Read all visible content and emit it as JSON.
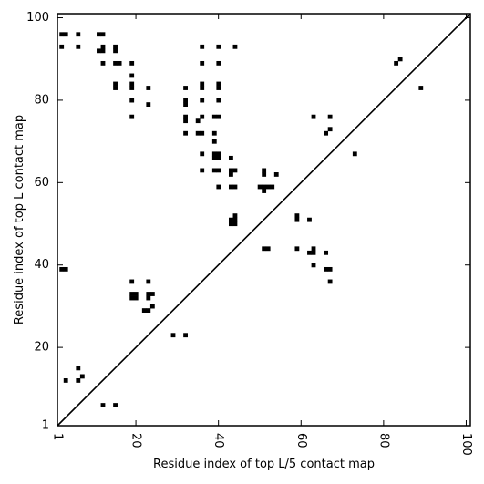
{
  "chart_data": {
    "type": "scatter",
    "title": "",
    "xlabel": "Residue index of top L/5 contact map",
    "ylabel": "Residue index of top L contact map",
    "xlim": [
      1,
      101
    ],
    "ylim": [
      1,
      101
    ],
    "x_ticks": [
      1,
      20,
      40,
      60,
      80,
      100
    ],
    "y_ticks": [
      1,
      20,
      40,
      60,
      80,
      100
    ],
    "diagonal": true,
    "grid": false,
    "points": [
      [
        2,
        96
      ],
      [
        3,
        96
      ],
      [
        6,
        96
      ],
      [
        11,
        96
      ],
      [
        12,
        96
      ],
      [
        2,
        93
      ],
      [
        6,
        93
      ],
      [
        11,
        92
      ],
      [
        12,
        92
      ],
      [
        12,
        93
      ],
      [
        15,
        92
      ],
      [
        15,
        93
      ],
      [
        12,
        89
      ],
      [
        15,
        89
      ],
      [
        16,
        89
      ],
      [
        19,
        89
      ],
      [
        19,
        86
      ],
      [
        15,
        84
      ],
      [
        15,
        83
      ],
      [
        19,
        84
      ],
      [
        19,
        83
      ],
      [
        23,
        83
      ],
      [
        19,
        80
      ],
      [
        23,
        79
      ],
      [
        19,
        76
      ],
      [
        36,
        93
      ],
      [
        40,
        93
      ],
      [
        44,
        93
      ],
      [
        36,
        89
      ],
      [
        40,
        89
      ],
      [
        32,
        83
      ],
      [
        36,
        84
      ],
      [
        36,
        83
      ],
      [
        40,
        84
      ],
      [
        40,
        83
      ],
      [
        32,
        80
      ],
      [
        32,
        79
      ],
      [
        36,
        80
      ],
      [
        40,
        80
      ],
      [
        32,
        76
      ],
      [
        32,
        75
      ],
      [
        35,
        75
      ],
      [
        36,
        76
      ],
      [
        39,
        76
      ],
      [
        40,
        76
      ],
      [
        32,
        72
      ],
      [
        35,
        72
      ],
      [
        36,
        72
      ],
      [
        39,
        72
      ],
      [
        39,
        70
      ],
      [
        36,
        67
      ],
      [
        39,
        67
      ],
      [
        40,
        67
      ],
      [
        39,
        66
      ],
      [
        40,
        66
      ],
      [
        43,
        66
      ],
      [
        36,
        63
      ],
      [
        39,
        63
      ],
      [
        40,
        63
      ],
      [
        43,
        63
      ],
      [
        44,
        63
      ],
      [
        43,
        62
      ],
      [
        40,
        59
      ],
      [
        43,
        59
      ],
      [
        44,
        59
      ],
      [
        51,
        63
      ],
      [
        51,
        62
      ],
      [
        54,
        62
      ],
      [
        50,
        59
      ],
      [
        51,
        59
      ],
      [
        52,
        59
      ],
      [
        53,
        59
      ],
      [
        51,
        58
      ],
      [
        43,
        51
      ],
      [
        44,
        51
      ],
      [
        43,
        50
      ],
      [
        44,
        50
      ],
      [
        44,
        52
      ],
      [
        59,
        52
      ],
      [
        59,
        51
      ],
      [
        62,
        51
      ],
      [
        51,
        44
      ],
      [
        52,
        44
      ],
      [
        59,
        44
      ],
      [
        62,
        43
      ],
      [
        63,
        43
      ],
      [
        63,
        44
      ],
      [
        66,
        43
      ],
      [
        63,
        40
      ],
      [
        66,
        39
      ],
      [
        67,
        39
      ],
      [
        67,
        36
      ],
      [
        63,
        76
      ],
      [
        67,
        76
      ],
      [
        66,
        72
      ],
      [
        67,
        73
      ],
      [
        73,
        67
      ],
      [
        83,
        89
      ],
      [
        84,
        90
      ],
      [
        89,
        83
      ],
      [
        2,
        39
      ],
      [
        3,
        39
      ],
      [
        19,
        36
      ],
      [
        23,
        36
      ],
      [
        19,
        33
      ],
      [
        20,
        33
      ],
      [
        19,
        32
      ],
      [
        20,
        32
      ],
      [
        23,
        33
      ],
      [
        23,
        32
      ],
      [
        24,
        33
      ],
      [
        22,
        29
      ],
      [
        23,
        29
      ],
      [
        24,
        30
      ],
      [
        29,
        23
      ],
      [
        32,
        23
      ],
      [
        6,
        15
      ],
      [
        7,
        13
      ],
      [
        6,
        12
      ],
      [
        3,
        12
      ],
      [
        12,
        6
      ],
      [
        15,
        6
      ]
    ]
  }
}
